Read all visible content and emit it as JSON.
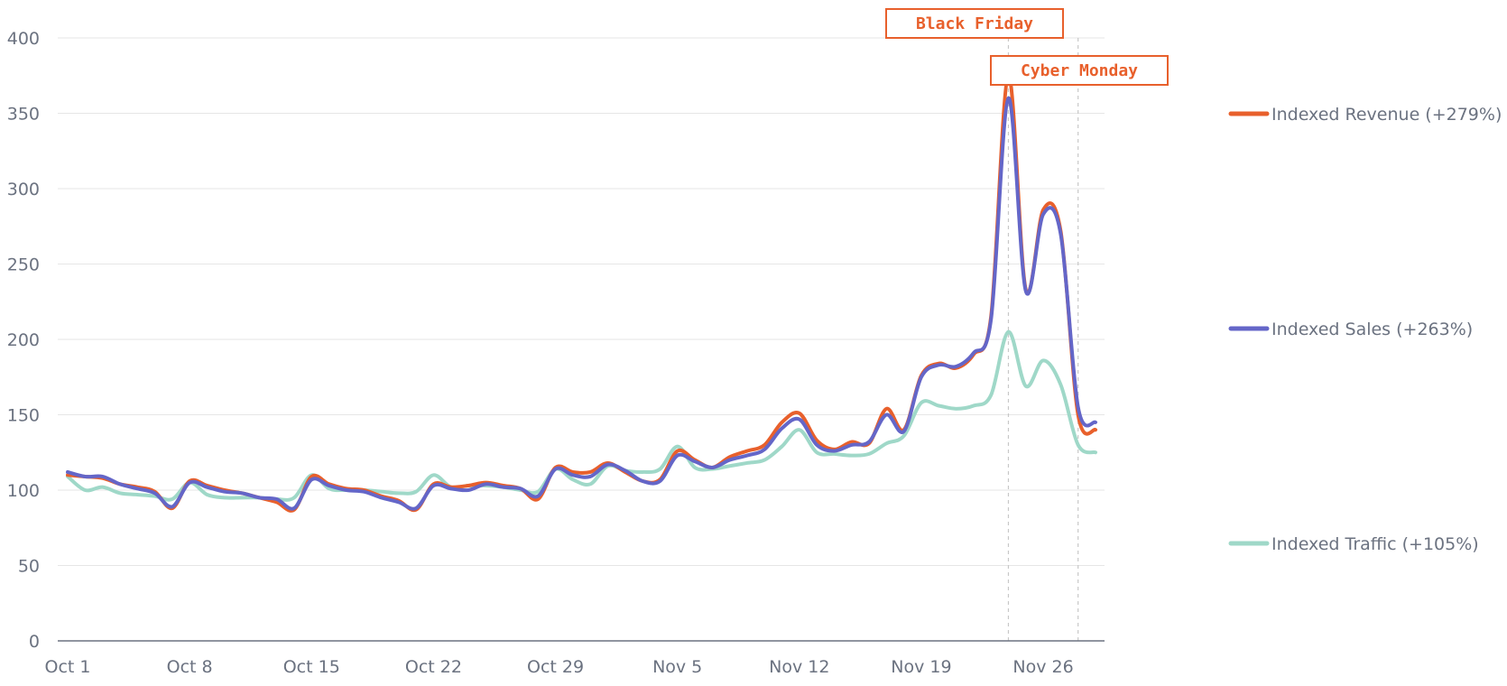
{
  "chart_data": {
    "type": "line",
    "title": "",
    "xlabel": "",
    "ylabel": "",
    "ylim": [
      0,
      400
    ],
    "yticks": [
      0,
      50,
      100,
      150,
      200,
      250,
      300,
      350,
      400
    ],
    "xticks": [
      {
        "label": "Oct 1",
        "day": 0
      },
      {
        "label": "Oct 8",
        "day": 7
      },
      {
        "label": "Oct 15",
        "day": 14
      },
      {
        "label": "Oct 22",
        "day": 21
      },
      {
        "label": "Oct 29",
        "day": 28
      },
      {
        "label": "Nov 5",
        "day": 35
      },
      {
        "label": "Nov 12",
        "day": 42
      },
      {
        "label": "Nov 19",
        "day": 49
      },
      {
        "label": "Nov 26",
        "day": 56
      }
    ],
    "xlim": [
      0,
      59.5
    ],
    "grid": true,
    "legend": "right",
    "x": [
      0,
      1,
      2,
      3,
      4,
      5,
      6,
      7,
      8,
      9,
      10,
      11,
      12,
      13,
      14,
      15,
      16,
      17,
      18,
      19,
      20,
      21,
      22,
      23,
      24,
      25,
      26,
      27,
      28,
      29,
      30,
      31,
      32,
      33,
      34,
      35,
      36,
      37,
      38,
      39,
      40,
      41,
      42,
      43,
      44,
      45,
      46,
      47,
      48,
      49,
      50,
      51,
      52,
      53,
      54,
      55,
      56,
      57,
      58,
      59
    ],
    "series": [
      {
        "name": "Indexed Revenue (+279%)",
        "color": "#e8602c",
        "values": [
          110,
          109,
          108,
          104,
          102,
          99,
          88,
          106,
          103,
          100,
          98,
          95,
          92,
          87,
          109,
          104,
          101,
          100,
          96,
          93,
          87,
          104,
          102,
          103,
          105,
          103,
          101,
          94,
          115,
          112,
          112,
          118,
          112,
          106,
          107,
          126,
          120,
          115,
          122,
          126,
          130,
          145,
          151,
          133,
          127,
          132,
          131,
          154,
          140,
          176,
          184,
          181,
          190,
          215,
          375,
          233,
          286,
          272,
          150,
          140
        ]
      },
      {
        "name": "Indexed Sales (+263%)",
        "color": "#6466c8",
        "values": [
          112,
          109,
          109,
          104,
          101,
          98,
          89,
          105,
          102,
          99,
          98,
          95,
          94,
          88,
          107,
          103,
          100,
          99,
          95,
          92,
          88,
          103,
          101,
          100,
          104,
          102,
          101,
          96,
          114,
          110,
          109,
          117,
          113,
          106,
          106,
          123,
          119,
          115,
          120,
          123,
          127,
          141,
          147,
          130,
          126,
          130,
          132,
          150,
          139,
          175,
          183,
          182,
          191,
          213,
          360,
          232,
          283,
          270,
          155,
          145
        ]
      },
      {
        "name": "Indexed Traffic (+105%)",
        "color": "#9fd8c8",
        "values": [
          109,
          100,
          102,
          98,
          97,
          96,
          94,
          105,
          97,
          95,
          95,
          95,
          94,
          95,
          110,
          101,
          100,
          100,
          99,
          98,
          99,
          110,
          102,
          103,
          103,
          102,
          100,
          99,
          114,
          107,
          104,
          116,
          113,
          112,
          114,
          129,
          115,
          114,
          116,
          118,
          120,
          129,
          140,
          125,
          124,
          123,
          124,
          131,
          136,
          158,
          156,
          154,
          156,
          163,
          205,
          169,
          186,
          170,
          130,
          125
        ]
      }
    ],
    "annotations": [
      {
        "label": "Black Friday",
        "day": 54
      },
      {
        "label": "Cyber Monday",
        "day": 58
      }
    ]
  }
}
